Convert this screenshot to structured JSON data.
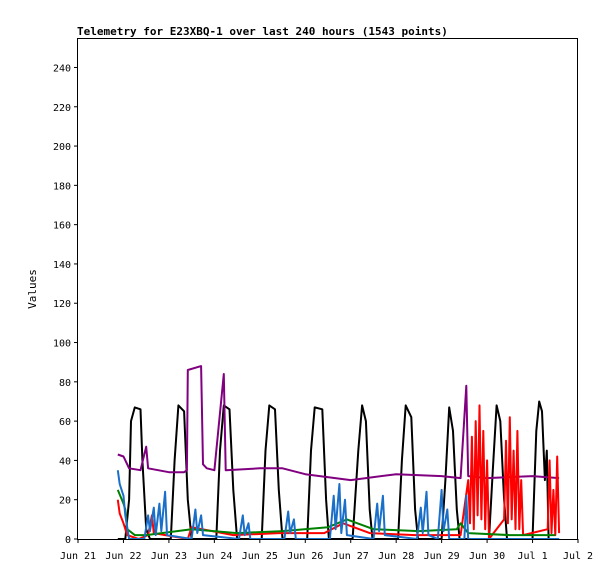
{
  "chart_data": {
    "type": "line",
    "title": "Telemetry for E23XBQ-1 over last 240 hours (1543 points)",
    "xlabel": "",
    "ylabel": "Values",
    "ylim": [
      0,
      255
    ],
    "yticks": [
      0,
      20,
      40,
      60,
      80,
      100,
      120,
      140,
      160,
      180,
      200,
      220,
      240
    ],
    "xlim": [
      "2023-06-21",
      "2023-07-02"
    ],
    "xticks": [
      {
        "x": "2023-06-21",
        "label": "Jun 21"
      },
      {
        "x": "2023-06-22",
        "label": "Jun 22"
      },
      {
        "x": "2023-06-23",
        "label": "Jun 23"
      },
      {
        "x": "2023-06-24",
        "label": "Jun 24"
      },
      {
        "x": "2023-06-25",
        "label": "Jun 25"
      },
      {
        "x": "2023-06-26",
        "label": "Jun 26"
      },
      {
        "x": "2023-06-27",
        "label": "Jun 27"
      },
      {
        "x": "2023-06-28",
        "label": "Jun 28"
      },
      {
        "x": "2023-06-29",
        "label": "Jun 29"
      },
      {
        "x": "2023-06-30",
        "label": "Jun 30"
      },
      {
        "x": "2023-07-01",
        "label": "Jul 1"
      },
      {
        "x": "2023-07-02",
        "label": "Jul 2"
      }
    ],
    "grid": false,
    "legend": "none",
    "series": [
      {
        "color": "#000000",
        "points": [
          [
            "2023-06-21 21:00",
            0
          ],
          [
            "2023-06-22 01:00",
            0
          ],
          [
            "2023-06-22 03:00",
            20
          ],
          [
            "2023-06-22 04:00",
            60
          ],
          [
            "2023-06-22 06:00",
            67
          ],
          [
            "2023-06-22 09:00",
            66
          ],
          [
            "2023-06-22 10:00",
            40
          ],
          [
            "2023-06-22 12:00",
            5
          ],
          [
            "2023-06-22 14:00",
            0
          ],
          [
            "2023-06-23 01:00",
            0
          ],
          [
            "2023-06-23 03:00",
            40
          ],
          [
            "2023-06-23 05:00",
            68
          ],
          [
            "2023-06-23 08:00",
            65
          ],
          [
            "2023-06-23 10:00",
            20
          ],
          [
            "2023-06-23 12:00",
            0
          ],
          [
            "2023-06-24 01:00",
            0
          ],
          [
            "2023-06-24 03:00",
            45
          ],
          [
            "2023-06-24 05:00",
            68
          ],
          [
            "2023-06-24 08:00",
            66
          ],
          [
            "2023-06-24 10:00",
            25
          ],
          [
            "2023-06-24 12:00",
            0
          ],
          [
            "2023-06-25 01:00",
            0
          ],
          [
            "2023-06-25 03:00",
            45
          ],
          [
            "2023-06-25 05:00",
            68
          ],
          [
            "2023-06-25 08:00",
            66
          ],
          [
            "2023-06-25 10:00",
            25
          ],
          [
            "2023-06-25 12:00",
            0
          ],
          [
            "2023-06-26 01:00",
            0
          ],
          [
            "2023-06-26 03:00",
            45
          ],
          [
            "2023-06-26 05:00",
            67
          ],
          [
            "2023-06-26 09:00",
            66
          ],
          [
            "2023-06-26 11:00",
            20
          ],
          [
            "2023-06-26 12:30",
            0
          ],
          [
            "2023-06-27 01:00",
            0
          ],
          [
            "2023-06-27 04:00",
            45
          ],
          [
            "2023-06-27 06:00",
            68
          ],
          [
            "2023-06-27 08:00",
            60
          ],
          [
            "2023-06-27 10:00",
            15
          ],
          [
            "2023-06-27 11:30",
            0
          ],
          [
            "2023-06-28 01:00",
            0
          ],
          [
            "2023-06-28 03:00",
            40
          ],
          [
            "2023-06-28 05:00",
            68
          ],
          [
            "2023-06-28 08:00",
            62
          ],
          [
            "2023-06-28 10:00",
            15
          ],
          [
            "2023-06-28 11:30",
            0
          ],
          [
            "2023-06-29 00:00",
            0
          ],
          [
            "2023-06-29 02:00",
            30
          ],
          [
            "2023-06-29 04:00",
            67
          ],
          [
            "2023-06-29 06:00",
            55
          ],
          [
            "2023-06-29 08:00",
            15
          ],
          [
            "2023-06-29 09:30",
            0
          ],
          [
            "2023-06-30 01:00",
            0
          ],
          [
            "2023-06-30 03:00",
            35
          ],
          [
            "2023-06-30 05:00",
            68
          ],
          [
            "2023-06-30 07:00",
            60
          ],
          [
            "2023-06-30 09:00",
            20
          ],
          [
            "2023-06-30 10:30",
            0
          ],
          [
            "2023-07-01 00:00",
            0
          ],
          [
            "2023-07-01 02:00",
            55
          ],
          [
            "2023-07-01 03:30",
            70
          ],
          [
            "2023-07-01 05:00",
            65
          ],
          [
            "2023-07-01 06:30",
            30
          ],
          [
            "2023-07-01 07:30",
            45
          ],
          [
            "2023-07-01 08:30",
            0
          ],
          [
            "2023-07-01 14:00",
            0
          ]
        ]
      },
      {
        "color": "#800080",
        "points": [
          [
            "2023-06-21 21:00",
            43
          ],
          [
            "2023-06-22 00:00",
            42
          ],
          [
            "2023-06-22 03:00",
            36
          ],
          [
            "2023-06-22 09:00",
            35
          ],
          [
            "2023-06-22 12:00",
            47
          ],
          [
            "2023-06-22 13:00",
            36
          ],
          [
            "2023-06-23 00:00",
            34
          ],
          [
            "2023-06-23 08:00",
            34
          ],
          [
            "2023-06-23 09:30",
            35
          ],
          [
            "2023-06-23 10:00",
            86
          ],
          [
            "2023-06-23 17:00",
            88
          ],
          [
            "2023-06-23 18:00",
            38
          ],
          [
            "2023-06-23 20:00",
            36
          ],
          [
            "2023-06-24 00:00",
            35
          ],
          [
            "2023-06-24 05:00",
            84
          ],
          [
            "2023-06-24 06:00",
            35
          ],
          [
            "2023-06-25 00:00",
            36
          ],
          [
            "2023-06-25 12:00",
            36
          ],
          [
            "2023-06-26 00:00",
            33
          ],
          [
            "2023-06-27 00:00",
            30
          ],
          [
            "2023-06-28 00:00",
            33
          ],
          [
            "2023-06-29 00:00",
            32
          ],
          [
            "2023-06-29 10:00",
            31
          ],
          [
            "2023-06-29 13:00",
            78
          ],
          [
            "2023-06-29 14:00",
            32
          ],
          [
            "2023-06-30 00:00",
            31
          ],
          [
            "2023-07-01 00:00",
            32
          ],
          [
            "2023-07-01 14:00",
            31
          ]
        ]
      },
      {
        "color": "#ff0000",
        "points": [
          [
            "2023-06-21 21:00",
            20
          ],
          [
            "2023-06-21 22:00",
            13
          ],
          [
            "2023-06-22 00:00",
            8
          ],
          [
            "2023-06-22 02:00",
            2
          ],
          [
            "2023-06-22 08:00",
            0
          ],
          [
            "2023-06-22 13:00",
            2
          ],
          [
            "2023-06-22 15:00",
            12
          ],
          [
            "2023-06-22 16:00",
            3
          ],
          [
            "2023-06-23 10:00",
            0
          ],
          [
            "2023-06-23 12:00",
            6
          ],
          [
            "2023-06-24 10:00",
            2
          ],
          [
            "2023-06-25 10:00",
            3
          ],
          [
            "2023-06-26 10:00",
            3
          ],
          [
            "2023-06-26 20:00",
            8
          ],
          [
            "2023-06-27 10:00",
            3
          ],
          [
            "2023-06-28 10:00",
            2
          ],
          [
            "2023-06-29 10:00",
            2
          ],
          [
            "2023-06-29 14:00",
            30
          ],
          [
            "2023-06-29 15:00",
            8
          ],
          [
            "2023-06-29 16:00",
            52
          ],
          [
            "2023-06-29 17:00",
            5
          ],
          [
            "2023-06-29 18:00",
            60
          ],
          [
            "2023-06-29 19:00",
            12
          ],
          [
            "2023-06-29 20:00",
            68
          ],
          [
            "2023-06-29 21:00",
            10
          ],
          [
            "2023-06-29 22:00",
            55
          ],
          [
            "2023-06-29 23:00",
            5
          ],
          [
            "2023-06-30 00:00",
            40
          ],
          [
            "2023-06-30 01:00",
            0
          ],
          [
            "2023-06-30 09:00",
            10
          ],
          [
            "2023-06-30 10:00",
            50
          ],
          [
            "2023-06-30 11:00",
            8
          ],
          [
            "2023-06-30 12:00",
            62
          ],
          [
            "2023-06-30 13:00",
            10
          ],
          [
            "2023-06-30 14:00",
            45
          ],
          [
            "2023-06-30 15:00",
            5
          ],
          [
            "2023-06-30 16:00",
            55
          ],
          [
            "2023-06-30 17:00",
            5
          ],
          [
            "2023-06-30 18:00",
            30
          ],
          [
            "2023-06-30 19:00",
            2
          ],
          [
            "2023-07-01 08:00",
            5
          ],
          [
            "2023-07-01 09:00",
            40
          ],
          [
            "2023-07-01 10:00",
            3
          ],
          [
            "2023-07-01 11:00",
            25
          ],
          [
            "2023-07-01 12:00",
            2
          ],
          [
            "2023-07-01 13:00",
            42
          ],
          [
            "2023-07-01 14:00",
            3
          ]
        ]
      },
      {
        "color": "#008000",
        "points": [
          [
            "2023-06-21 21:00",
            25
          ],
          [
            "2023-06-22 00:00",
            18
          ],
          [
            "2023-06-22 01:00",
            15
          ],
          [
            "2023-06-22 02:00",
            5
          ],
          [
            "2023-06-22 06:00",
            2
          ],
          [
            "2023-06-22 12:00",
            2
          ],
          [
            "2023-06-23 12:00",
            5
          ],
          [
            "2023-06-24 12:00",
            3
          ],
          [
            "2023-06-25 12:00",
            4
          ],
          [
            "2023-06-26 12:00",
            6
          ],
          [
            "2023-06-26 22:00",
            10
          ],
          [
            "2023-06-27 12:00",
            5
          ],
          [
            "2023-06-28 12:00",
            4
          ],
          [
            "2023-06-29 08:00",
            5
          ],
          [
            "2023-06-29 10:00",
            8
          ],
          [
            "2023-06-29 14:00",
            3
          ],
          [
            "2023-06-30 12:00",
            2
          ],
          [
            "2023-07-01 12:00",
            2
          ]
        ]
      },
      {
        "color": "#1a6fc9",
        "points": [
          [
            "2023-06-21 21:00",
            35
          ],
          [
            "2023-06-21 22:00",
            28
          ],
          [
            "2023-06-22 00:00",
            22
          ],
          [
            "2023-06-22 01:00",
            12
          ],
          [
            "2023-06-22 03:00",
            0
          ],
          [
            "2023-06-22 11:00",
            0
          ],
          [
            "2023-06-22 13:00",
            12
          ],
          [
            "2023-06-22 14:00",
            4
          ],
          [
            "2023-06-22 16:00",
            16
          ],
          [
            "2023-06-22 17:00",
            2
          ],
          [
            "2023-06-22 19:00",
            18
          ],
          [
            "2023-06-22 20:00",
            4
          ],
          [
            "2023-06-22 22:00",
            24
          ],
          [
            "2023-06-22 23:00",
            2
          ],
          [
            "2023-06-23 12:00",
            0
          ],
          [
            "2023-06-23 14:00",
            15
          ],
          [
            "2023-06-23 15:00",
            3
          ],
          [
            "2023-06-23 17:00",
            12
          ],
          [
            "2023-06-23 18:00",
            2
          ],
          [
            "2023-06-24 13:00",
            0
          ],
          [
            "2023-06-24 15:00",
            12
          ],
          [
            "2023-06-24 16:00",
            2
          ],
          [
            "2023-06-24 18:00",
            8
          ],
          [
            "2023-06-24 19:00",
            0
          ],
          [
            "2023-06-25 13:00",
            0
          ],
          [
            "2023-06-25 15:00",
            14
          ],
          [
            "2023-06-25 16:00",
            3
          ],
          [
            "2023-06-25 18:00",
            10
          ],
          [
            "2023-06-25 19:00",
            0
          ],
          [
            "2023-06-26 13:00",
            0
          ],
          [
            "2023-06-26 15:00",
            22
          ],
          [
            "2023-06-26 16:00",
            5
          ],
          [
            "2023-06-26 18:00",
            28
          ],
          [
            "2023-06-26 19:00",
            3
          ],
          [
            "2023-06-26 21:00",
            20
          ],
          [
            "2023-06-26 22:00",
            2
          ],
          [
            "2023-06-27 12:00",
            0
          ],
          [
            "2023-06-27 14:00",
            18
          ],
          [
            "2023-06-27 15:00",
            4
          ],
          [
            "2023-06-27 17:00",
            22
          ],
          [
            "2023-06-27 18:00",
            2
          ],
          [
            "2023-06-28 11:00",
            0
          ],
          [
            "2023-06-28 13:00",
            16
          ],
          [
            "2023-06-28 14:00",
            3
          ],
          [
            "2023-06-28 16:00",
            24
          ],
          [
            "2023-06-28 17:00",
            2
          ],
          [
            "2023-06-28 22:00",
            0
          ],
          [
            "2023-06-29 00:00",
            25
          ],
          [
            "2023-06-29 01:00",
            4
          ],
          [
            "2023-06-29 03:00",
            15
          ],
          [
            "2023-06-29 04:00",
            0
          ],
          [
            "2023-06-29 12:00",
            0
          ],
          [
            "2023-06-29 13:00",
            22
          ],
          [
            "2023-06-29 14:00",
            0
          ],
          [
            "2023-07-01 14:00",
            0
          ]
        ]
      }
    ]
  }
}
